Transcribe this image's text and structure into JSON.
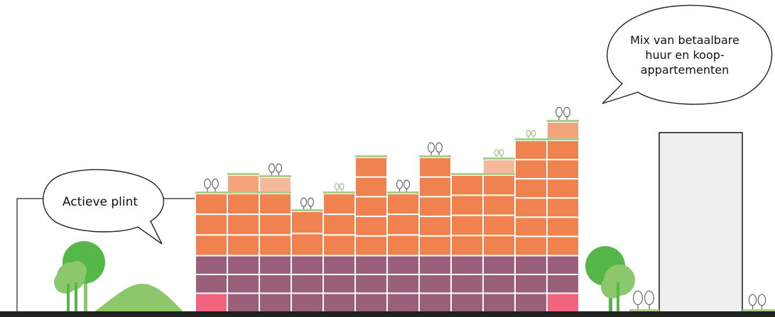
{
  "callouts": {
    "plinth_label": "Actieve plint",
    "mix_label_lines": [
      "Mix van betaalbare",
      "huur en koop-",
      "appartementen"
    ]
  },
  "colors": {
    "housing": "#f0824f",
    "housing_light": "#f4a47c",
    "housing_faint": "#f6b89a",
    "plinth": "#9a5f7b",
    "plinth_accent": "#f2647d",
    "roof_green": "#a8cf8e",
    "tree_dark": "#55b748",
    "tree_light": "#8cc86b",
    "hill": "#8cc86b",
    "ground": "#222222",
    "tower_fill": "#eff0ee",
    "tower_stroke": "#222222"
  },
  "icons": {
    "tree": "deciduous-tree-icon",
    "roof_tree": "roof-tree-outline-icon"
  }
}
